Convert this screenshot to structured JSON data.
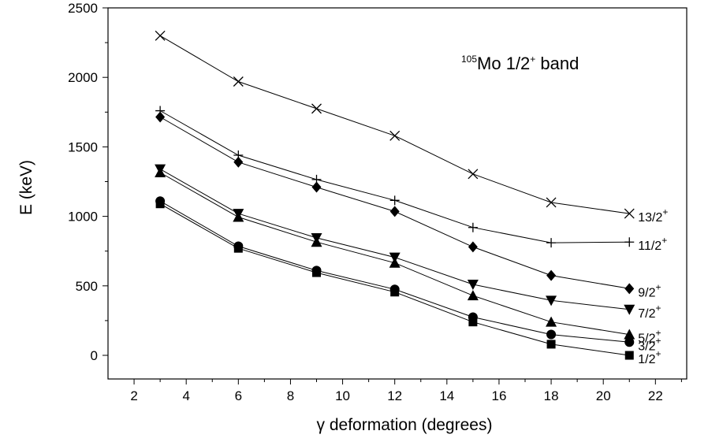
{
  "chart_data": {
    "type": "line",
    "title": {
      "prefix_sup": "105",
      "main": "Mo 1/2",
      "main_sup": "+",
      "suffix": " band"
    },
    "xlabel": "γ deformation (degrees)",
    "ylabel": "E (keV)",
    "xlim": [
      1,
      23.2
    ],
    "ylim": [
      -170,
      2500
    ],
    "xticks": [
      2,
      4,
      6,
      8,
      10,
      12,
      14,
      16,
      18,
      20,
      22
    ],
    "yticks": [
      0,
      500,
      1000,
      1500,
      2000,
      2500
    ],
    "grid": false,
    "x": [
      3,
      6,
      9,
      12,
      15,
      18,
      21
    ],
    "series": [
      {
        "name": "1/2",
        "sup": "+",
        "marker": "square",
        "values": [
          1090,
          770,
          595,
          455,
          240,
          80,
          0
        ]
      },
      {
        "name": "3/2",
        "sup": "+",
        "marker": "circle",
        "values": [
          1110,
          785,
          610,
          475,
          275,
          150,
          95
        ]
      },
      {
        "name": "5/2",
        "sup": "+",
        "marker": "triangle-up",
        "values": [
          1315,
          995,
          815,
          665,
          430,
          240,
          150
        ]
      },
      {
        "name": "7/2",
        "sup": "+",
        "marker": "triangle-down",
        "values": [
          1340,
          1020,
          845,
          705,
          510,
          395,
          330
        ]
      },
      {
        "name": "9/2",
        "sup": "+",
        "marker": "diamond",
        "values": [
          1715,
          1390,
          1210,
          1035,
          780,
          575,
          480
        ]
      },
      {
        "name": "11/2",
        "sup": "+",
        "marker": "plus",
        "values": [
          1760,
          1440,
          1265,
          1115,
          920,
          810,
          815
        ]
      },
      {
        "name": "13/2",
        "sup": "+",
        "marker": "cross",
        "values": [
          2300,
          1970,
          1775,
          1580,
          1305,
          1100,
          1020
        ]
      }
    ]
  }
}
